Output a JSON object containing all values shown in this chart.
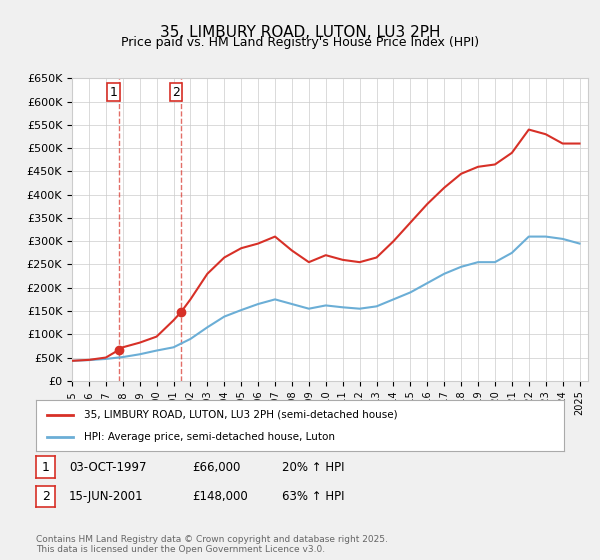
{
  "title": "35, LIMBURY ROAD, LUTON, LU3 2PH",
  "subtitle": "Price paid vs. HM Land Registry's House Price Index (HPI)",
  "ylabel": "",
  "ylim": [
    0,
    650000
  ],
  "yticks": [
    0,
    50000,
    100000,
    150000,
    200000,
    250000,
    300000,
    350000,
    400000,
    450000,
    500000,
    550000,
    600000,
    650000
  ],
  "ytick_labels": [
    "£0",
    "£50K",
    "£100K",
    "£150K",
    "£200K",
    "£250K",
    "£300K",
    "£350K",
    "£400K",
    "£450K",
    "£500K",
    "£550K",
    "£600K",
    "£650K"
  ],
  "xlim_left": 1995.0,
  "xlim_right": 2025.5,
  "hpi_color": "#6baed6",
  "price_color": "#d73027",
  "sale1_x": 1997.75,
  "sale1_y": 66000,
  "sale2_x": 2001.45,
  "sale2_y": 148000,
  "legend_line1": "35, LIMBURY ROAD, LUTON, LU3 2PH (semi-detached house)",
  "legend_line2": "HPI: Average price, semi-detached house, Luton",
  "table_row1": [
    "1",
    "03-OCT-1997",
    "£66,000",
    "20% ↑ HPI"
  ],
  "table_row2": [
    "2",
    "15-JUN-2001",
    "£148,000",
    "63% ↑ HPI"
  ],
  "footer": "Contains HM Land Registry data © Crown copyright and database right 2025.\nThis data is licensed under the Open Government Licence v3.0.",
  "bg_color": "#f0f0f0",
  "plot_bg_color": "#ffffff",
  "hpi_years": [
    1995,
    1996,
    1997,
    1998,
    1999,
    2000,
    2001,
    2002,
    2003,
    2004,
    2005,
    2006,
    2007,
    2008,
    2009,
    2010,
    2011,
    2012,
    2013,
    2014,
    2015,
    2016,
    2017,
    2018,
    2019,
    2020,
    2021,
    2022,
    2023,
    2024,
    2025
  ],
  "hpi_values": [
    43000,
    44500,
    47000,
    51000,
    57000,
    65000,
    72000,
    90000,
    115000,
    138000,
    152000,
    165000,
    175000,
    165000,
    155000,
    162000,
    158000,
    155000,
    160000,
    175000,
    190000,
    210000,
    230000,
    245000,
    255000,
    255000,
    275000,
    310000,
    310000,
    305000,
    295000
  ],
  "price_years": [
    1995,
    1996,
    1997,
    1997.75,
    1998,
    1999,
    2000,
    2001,
    2001.45,
    2002,
    2003,
    2004,
    2005,
    2006,
    2007,
    2008,
    2009,
    2010,
    2011,
    2012,
    2013,
    2014,
    2015,
    2016,
    2017,
    2018,
    2019,
    2020,
    2021,
    2022,
    2023,
    2024,
    2025
  ],
  "price_values": [
    43000,
    45000,
    50000,
    66000,
    72000,
    82000,
    95000,
    130000,
    148000,
    175000,
    230000,
    265000,
    285000,
    295000,
    310000,
    280000,
    255000,
    270000,
    260000,
    255000,
    265000,
    300000,
    340000,
    380000,
    415000,
    445000,
    460000,
    465000,
    490000,
    540000,
    530000,
    510000,
    510000
  ]
}
